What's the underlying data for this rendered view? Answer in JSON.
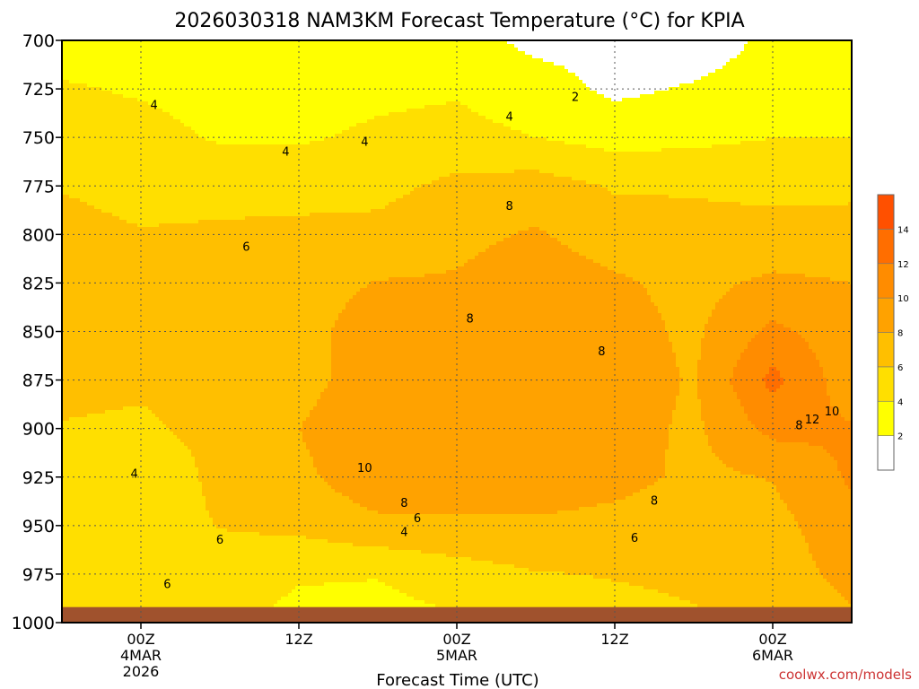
{
  "title": "2026030318 NAM3KM Forecast Temperature (°C) for KPIA",
  "credit": "coolwx.com/models",
  "chart_data": {
    "type": "heatmap",
    "title": "2026030318 NAM3KM Forecast Temperature (°C) for KPIA",
    "xlabel": "Forecast Time (UTC)",
    "ylabel": "",
    "x_range_hours_from_init": [
      0,
      60
    ],
    "y_range_hpa": [
      1000,
      700
    ],
    "y_ticks": [
      700,
      725,
      750,
      775,
      800,
      825,
      850,
      875,
      900,
      925,
      950,
      975,
      1000
    ],
    "x_ticks": [
      {
        "hour": 6,
        "label": [
          "00Z",
          "4MAR",
          "2026"
        ]
      },
      {
        "hour": 18,
        "label": [
          "12Z"
        ]
      },
      {
        "hour": 30,
        "label": [
          "00Z",
          "5MAR"
        ]
      },
      {
        "hour": 42,
        "label": [
          "12Z"
        ]
      },
      {
        "hour": 54,
        "label": [
          "00Z",
          "6MAR"
        ]
      }
    ],
    "grid": true,
    "legend": {
      "placement": "right",
      "levels": [
        0,
        2,
        4,
        6,
        8,
        10,
        12,
        14,
        16
      ],
      "labels": [
        "2",
        "4",
        "6",
        "8",
        "10",
        "12",
        "14"
      ],
      "colors": [
        "#ffffff",
        "#ffff00",
        "#ffdf00",
        "#ffbf00",
        "#ffa200",
        "#ff8c00",
        "#ff6e00",
        "#ff5000"
      ]
    },
    "ground_color": "#a0522d",
    "contour_labels": [
      {
        "hour": 7,
        "p": 733,
        "text": "4"
      },
      {
        "hour": 17,
        "p": 757,
        "text": "4"
      },
      {
        "hour": 23,
        "p": 752,
        "text": "4"
      },
      {
        "hour": 34,
        "p": 739,
        "text": "4"
      },
      {
        "hour": 39,
        "p": 729,
        "text": "2"
      },
      {
        "hour": 14,
        "p": 806,
        "text": "6"
      },
      {
        "hour": 5.5,
        "p": 923,
        "text": "4"
      },
      {
        "hour": 12,
        "p": 957,
        "text": "6"
      },
      {
        "hour": 8,
        "p": 980,
        "text": "6"
      },
      {
        "hour": 34,
        "p": 785,
        "text": "8"
      },
      {
        "hour": 31,
        "p": 843,
        "text": "8"
      },
      {
        "hour": 41,
        "p": 860,
        "text": "8"
      },
      {
        "hour": 23,
        "p": 920,
        "text": "10"
      },
      {
        "hour": 26,
        "p": 938,
        "text": "8"
      },
      {
        "hour": 27,
        "p": 946,
        "text": "6"
      },
      {
        "hour": 26,
        "p": 953,
        "text": "4"
      },
      {
        "hour": 45,
        "p": 937,
        "text": "8"
      },
      {
        "hour": 43.5,
        "p": 956,
        "text": "6"
      },
      {
        "hour": 56,
        "p": 898,
        "text": "8"
      },
      {
        "hour": 57,
        "p": 895,
        "text": "12"
      },
      {
        "hour": 58.5,
        "p": 891,
        "text": "10"
      }
    ],
    "field": {
      "hours": [
        0,
        6,
        12,
        18,
        24,
        30,
        36,
        42,
        48,
        54,
        60
      ],
      "levels_hpa": [
        700,
        725,
        750,
        775,
        800,
        825,
        850,
        875,
        900,
        925,
        950,
        975,
        1000
      ],
      "values": [
        [
          3.0,
          3.3,
          2.6,
          2.6,
          2.9,
          2.7,
          1.5,
          1.3,
          0.8,
          2.5,
          2.4
        ],
        [
          4.2,
          3.8,
          3.4,
          3.3,
          3.6,
          3.8,
          2.9,
          1.6,
          2.2,
          3.0,
          3.3
        ],
        [
          5.0,
          4.6,
          3.8,
          3.8,
          4.3,
          4.6,
          4.0,
          3.2,
          3.5,
          4.0,
          4.0
        ],
        [
          5.9,
          5.4,
          5.3,
          5.1,
          5.4,
          6.5,
          6.9,
          5.8,
          5.8,
          5.5,
          5.6
        ],
        [
          6.6,
          6.1,
          6.3,
          6.6,
          6.6,
          7.5,
          8.2,
          7.0,
          6.6,
          6.7,
          6.7
        ],
        [
          6.6,
          6.5,
          6.5,
          7.0,
          8.1,
          8.2,
          9.1,
          8.3,
          7.4,
          8.4,
          8.0
        ],
        [
          6.6,
          6.6,
          6.3,
          7.2,
          9.2,
          8.9,
          8.9,
          8.8,
          7.6,
          10.5,
          8.7
        ],
        [
          6.5,
          6.3,
          6.6,
          7.1,
          9.4,
          9.1,
          9.2,
          9.1,
          7.8,
          12.6,
          8.7
        ],
        [
          5.9,
          5.7,
          6.6,
          8.0,
          9.9,
          9.3,
          9.6,
          8.9,
          7.6,
          10.6,
          10.2
        ],
        [
          5.3,
          4.3,
          6.6,
          7.5,
          9.4,
          9.0,
          9.6,
          8.8,
          7.5,
          8.1,
          10.3
        ],
        [
          4.6,
          4.7,
          6.1,
          6.5,
          7.5,
          7.7,
          7.6,
          7.2,
          6.7,
          7.3,
          9.4
        ],
        [
          4.3,
          5.6,
          4.8,
          4.2,
          4.1,
          5.1,
          5.9,
          6.1,
          6.3,
          6.9,
          8.7
        ],
        [
          3.8,
          6.1,
          4.7,
          3.4,
          3.2,
          3.7,
          4.6,
          5.4,
          5.8,
          6.4,
          7.6
        ]
      ]
    }
  }
}
